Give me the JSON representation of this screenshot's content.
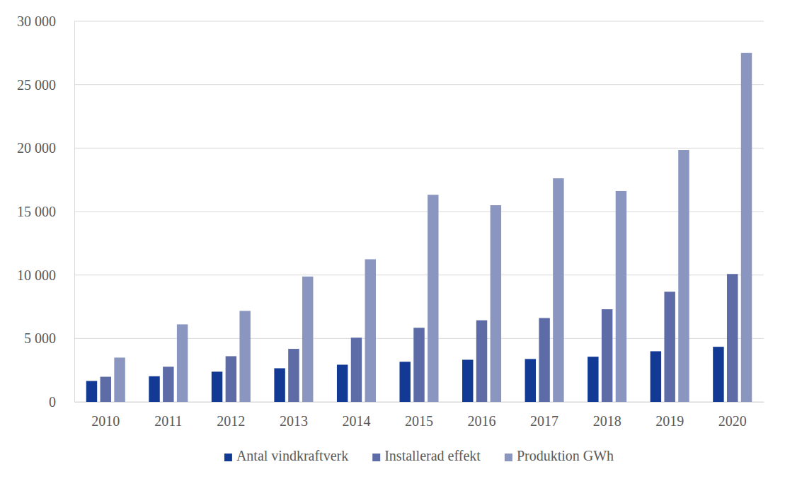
{
  "chart_data": {
    "type": "bar",
    "categories": [
      "2010",
      "2011",
      "2012",
      "2013",
      "2014",
      "2015",
      "2016",
      "2017",
      "2018",
      "2019",
      "2020"
    ],
    "series": [
      {
        "name": "Antal vindkraftverk",
        "color": "#123a94",
        "values": [
          1650,
          2020,
          2380,
          2650,
          2930,
          3160,
          3320,
          3380,
          3560,
          3990,
          4340
        ]
      },
      {
        "name": "Installerad effekt",
        "color": "#5d6ca6",
        "values": [
          1980,
          2770,
          3600,
          4180,
          5060,
          5840,
          6430,
          6610,
          7300,
          8680,
          10080
        ]
      },
      {
        "name": "Produktion GWh",
        "color": "#8a96c0",
        "values": [
          3490,
          6110,
          7170,
          9880,
          11240,
          16320,
          15500,
          17620,
          16620,
          19850,
          27500
        ]
      }
    ],
    "ylim": [
      0,
      30000
    ],
    "yticks": [
      0,
      {
        "value": 5000,
        "label": "5 000"
      },
      {
        "value": 10000,
        "label": "10 000"
      },
      {
        "value": 15000,
        "label": "15 000"
      },
      {
        "value": 20000,
        "label": "20 000"
      },
      {
        "value": 25000,
        "label": "25 000"
      },
      {
        "value": 30000,
        "label": "30 000"
      }
    ],
    "grid": true,
    "legend": "bottom"
  }
}
